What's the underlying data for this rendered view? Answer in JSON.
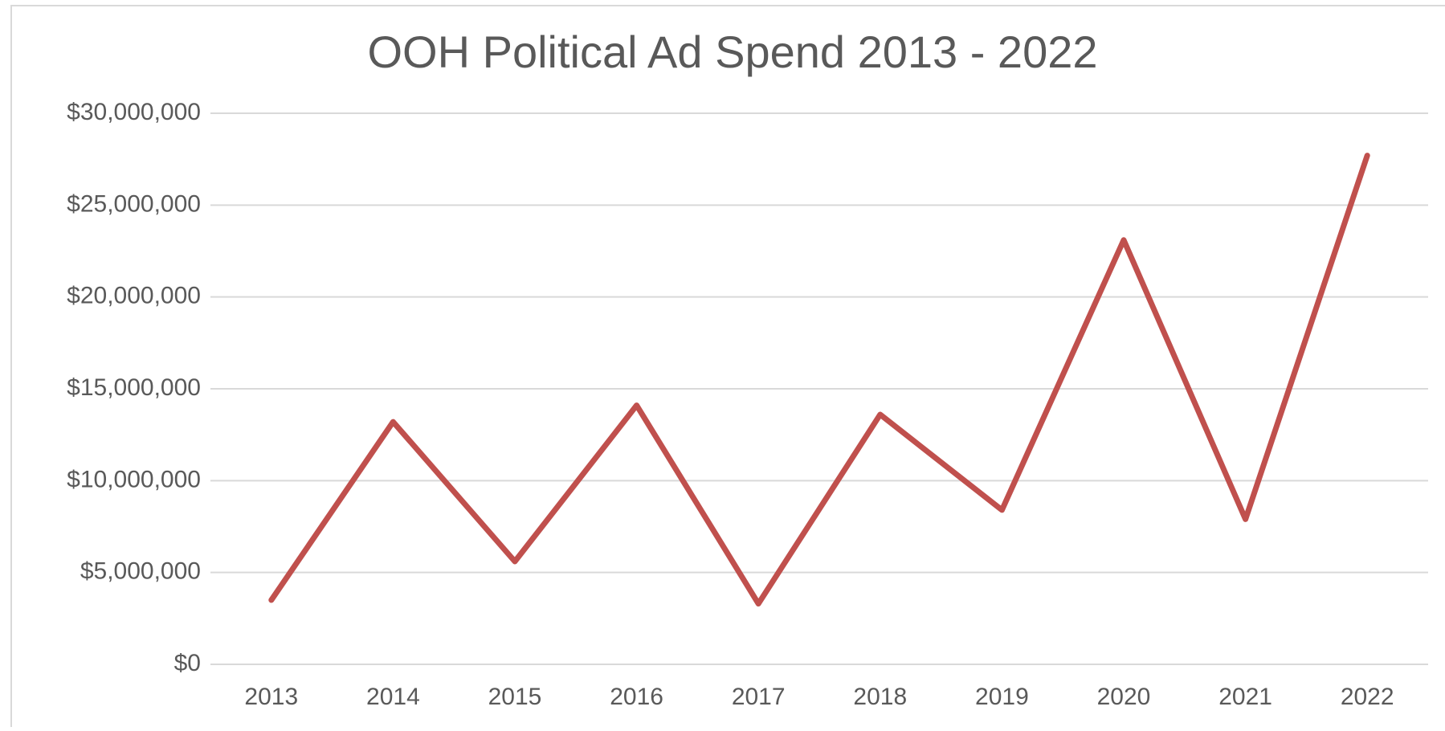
{
  "chart_data": {
    "type": "line",
    "title": "OOH Political Ad Spend 2013 - 2022",
    "categories": [
      "2013",
      "2014",
      "2015",
      "2016",
      "2017",
      "2018",
      "2019",
      "2020",
      "2021",
      "2022"
    ],
    "series": [
      {
        "name": "OOH Political Ad Spend",
        "color": "#c0504d",
        "values": [
          3500000,
          13200000,
          5600000,
          14100000,
          3300000,
          13600000,
          8400000,
          23100000,
          7900000,
          27700000
        ]
      }
    ],
    "ylim": [
      0,
      30000000
    ],
    "yticks": [
      {
        "value": 0,
        "label": "$0"
      },
      {
        "value": 5000000,
        "label": "$5,000,000"
      },
      {
        "value": 10000000,
        "label": "$10,000,000"
      },
      {
        "value": 15000000,
        "label": "$15,000,000"
      },
      {
        "value": 20000000,
        "label": "$20,000,000"
      },
      {
        "value": 25000000,
        "label": "$25,000,000"
      },
      {
        "value": 30000000,
        "label": "$30,000,000"
      }
    ],
    "grid": true
  }
}
